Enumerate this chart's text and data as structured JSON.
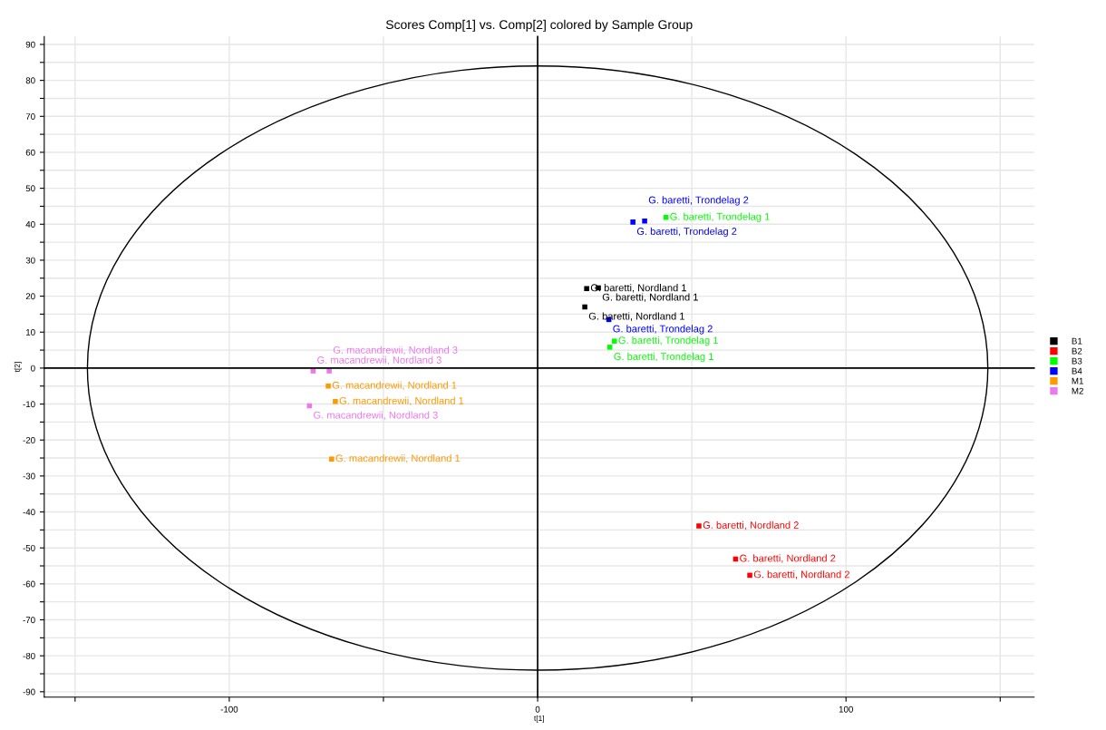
{
  "chart_data": {
    "type": "scatter",
    "title": "Scores Comp[1] vs. Comp[2] colored by Sample Group",
    "xlabel": "t[1]",
    "ylabel": "t[2]",
    "marker": "square",
    "grid": true,
    "legend": "right",
    "xlim": [
      -160,
      161
    ],
    "ylim": [
      -91.5,
      92.2
    ],
    "xticks": [
      {
        "value": -150,
        "label": null
      },
      -100,
      {
        "value": -50,
        "label": null
      },
      0,
      {
        "value": 50,
        "label": null
      },
      100,
      {
        "value": 150,
        "label": null
      }
    ],
    "yticks": [
      -90,
      {
        "value": -85,
        "label": null
      },
      -80,
      {
        "value": -75,
        "label": null
      },
      -70,
      {
        "value": -65,
        "label": null
      },
      -60,
      {
        "value": -55,
        "label": null
      },
      -50,
      {
        "value": -45,
        "label": null
      },
      -40,
      {
        "value": -35,
        "label": null
      },
      -30,
      {
        "value": -25,
        "label": null
      },
      -20,
      {
        "value": -15,
        "label": null
      },
      -10,
      {
        "value": -5,
        "label": null
      },
      0,
      {
        "value": 5,
        "label": null
      },
      10,
      {
        "value": 15,
        "label": null
      },
      20,
      {
        "value": 25,
        "label": null
      },
      30,
      {
        "value": 35,
        "label": null
      },
      40,
      {
        "value": 45,
        "label": null
      },
      50,
      {
        "value": 55,
        "label": null
      },
      60,
      {
        "value": 65,
        "label": null
      },
      70,
      {
        "value": 75,
        "label": null
      },
      80,
      {
        "value": 85,
        "label": null
      },
      90
    ],
    "series": [
      {
        "name": "B1",
        "color": "#000000",
        "x": [
          15.9,
          19.7,
          15.3
        ],
        "values": [
          22.1,
          22.3,
          17.0
        ]
      },
      {
        "name": "B2",
        "color": "#ff0000",
        "x": [
          52.3,
          64.2,
          68.8
        ],
        "values": [
          -43.9,
          -53.1,
          -57.6
        ]
      },
      {
        "name": "B3",
        "color": "#00ff00",
        "x": [
          41.6,
          24.9,
          23.4
        ],
        "values": [
          41.9,
          7.5,
          5.8
        ]
      },
      {
        "name": "B4",
        "color": "#0000ff",
        "x": [
          30.9,
          34.7,
          23.1
        ],
        "values": [
          40.6,
          40.9,
          13.5
        ]
      },
      {
        "name": "M1",
        "color": "#ff9900",
        "x": [
          -67.9,
          -65.6,
          -66.8
        ],
        "values": [
          -5.0,
          -9.3,
          -25.3
        ]
      },
      {
        "name": "M2",
        "color": "#ee77ee",
        "x": [
          -72.8,
          -67.6,
          -74.0
        ],
        "values": [
          -0.8,
          -0.8,
          -10.5
        ]
      }
    ],
    "annotations": [
      {
        "text": "G. baretti, Nordland 1",
        "x": 15.9,
        "y": 22.1
      },
      {
        "text": "G. baretti, Nordland 1",
        "x": 19.7,
        "y": 22.3
      },
      {
        "text": "G. baretti, Nordland 1",
        "x": 15.3,
        "y": 17.0
      },
      {
        "text": "G. baretti, Nordland 2",
        "x": 52.3,
        "y": -43.9
      },
      {
        "text": "G. baretti, Nordland 2",
        "x": 64.2,
        "y": -53.1
      },
      {
        "text": "G. baretti, Nordland 2",
        "x": 68.8,
        "y": -57.6
      },
      {
        "text": "G. baretti, Trondelag 1",
        "x": 41.6,
        "y": 41.9
      },
      {
        "text": "G. baretti, Trondelag 1",
        "x": 24.9,
        "y": 7.5
      },
      {
        "text": "G. baretti, Trondelag 1",
        "x": 23.4,
        "y": 5.8
      },
      {
        "text": "G. baretti, Trondelag 2",
        "x": 30.9,
        "y": 40.6
      },
      {
        "text": "G. baretti, Trondelag 2",
        "x": 34.7,
        "y": 40.9
      },
      {
        "text": "G. baretti, Trondelag 2",
        "x": 23.1,
        "y": 13.5
      },
      {
        "text": "G. macandrewii, Nordland 1",
        "x": -67.9,
        "y": -5.0
      },
      {
        "text": "G. macandrewii, Nordland 1",
        "x": -65.6,
        "y": -9.3
      },
      {
        "text": "G. macandrewii, Nordland 1",
        "x": -66.8,
        "y": -25.3
      },
      {
        "text": "G. macandrewii, Nordland 3",
        "x": -72.8,
        "y": -0.8
      },
      {
        "text": "G. macandrewii, Nordland 3",
        "x": -67.6,
        "y": -0.8
      },
      {
        "text": "G. macandrewii, Nordland 3",
        "x": -74.0,
        "y": -10.5
      }
    ]
  }
}
